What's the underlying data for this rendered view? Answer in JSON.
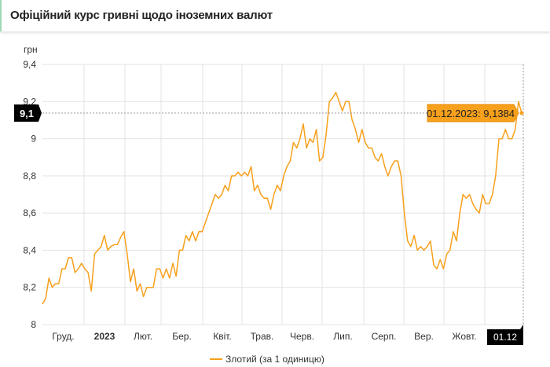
{
  "header": {
    "title": "Офіційний курс гривні щодо іноземних валют"
  },
  "chart_data": {
    "type": "line",
    "title": "Офіційний курс гривні щодо іноземних валют",
    "ylabel": "грн",
    "ylim": [
      8,
      9.4
    ],
    "yticks": [
      "8",
      "8,2",
      "8,4",
      "8,6",
      "8,8",
      "9",
      "9,2",
      "9,4"
    ],
    "ytick_values": [
      8,
      8.2,
      8.4,
      8.6,
      8.8,
      9,
      9.2,
      9.4
    ],
    "xticks": [
      "Груд.",
      "2023",
      "Лют.",
      "Бер.",
      "Квіт.",
      "Трав.",
      "Черв.",
      "Лип.",
      "Серп.",
      "Вер.",
      "Жовт."
    ],
    "current_x_label": "01.12",
    "crosshair_y_label": "9,1",
    "tooltip": "01.12.2023: 9,1384",
    "grid": true,
    "legend_position": "bottom",
    "series": [
      {
        "name": "Злотий (за 1 одиницю)",
        "color": "#f7a01c",
        "values": [
          8.11,
          8.14,
          8.25,
          8.2,
          8.22,
          8.22,
          8.3,
          8.3,
          8.36,
          8.36,
          8.28,
          8.3,
          8.33,
          8.3,
          8.28,
          8.18,
          8.38,
          8.4,
          8.42,
          8.48,
          8.4,
          8.42,
          8.43,
          8.43,
          8.47,
          8.5,
          8.38,
          8.23,
          8.3,
          8.18,
          8.22,
          8.15,
          8.2,
          8.2,
          8.2,
          8.3,
          8.3,
          8.25,
          8.3,
          8.25,
          8.33,
          8.26,
          8.4,
          8.4,
          8.48,
          8.45,
          8.5,
          8.45,
          8.5,
          8.5,
          8.55,
          8.6,
          8.65,
          8.7,
          8.68,
          8.7,
          8.75,
          8.72,
          8.8,
          8.8,
          8.82,
          8.8,
          8.82,
          8.8,
          8.85,
          8.72,
          8.75,
          8.7,
          8.68,
          8.68,
          8.62,
          8.7,
          8.75,
          8.72,
          8.8,
          8.85,
          8.88,
          8.98,
          8.95,
          9.0,
          9.08,
          8.95,
          9.0,
          8.98,
          9.05,
          8.88,
          8.9,
          9.02,
          9.2,
          9.22,
          9.25,
          9.2,
          9.15,
          9.2,
          9.2,
          9.1,
          9.05,
          8.98,
          9.05,
          8.98,
          8.95,
          8.95,
          8.9,
          8.88,
          8.92,
          8.85,
          8.8,
          8.85,
          8.88,
          8.88,
          8.8,
          8.6,
          8.45,
          8.42,
          8.48,
          8.4,
          8.42,
          8.4,
          8.42,
          8.45,
          8.32,
          8.3,
          8.35,
          8.3,
          8.38,
          8.4,
          8.5,
          8.45,
          8.6,
          8.7,
          8.68,
          8.7,
          8.65,
          8.62,
          8.6,
          8.7,
          8.65,
          8.65,
          8.7,
          8.8,
          9.0,
          9.0,
          9.05,
          9.0,
          9.0,
          9.05,
          9.2,
          9.1384
        ]
      }
    ]
  },
  "legend": {
    "label": "Злотий (за 1 одиницю)"
  }
}
